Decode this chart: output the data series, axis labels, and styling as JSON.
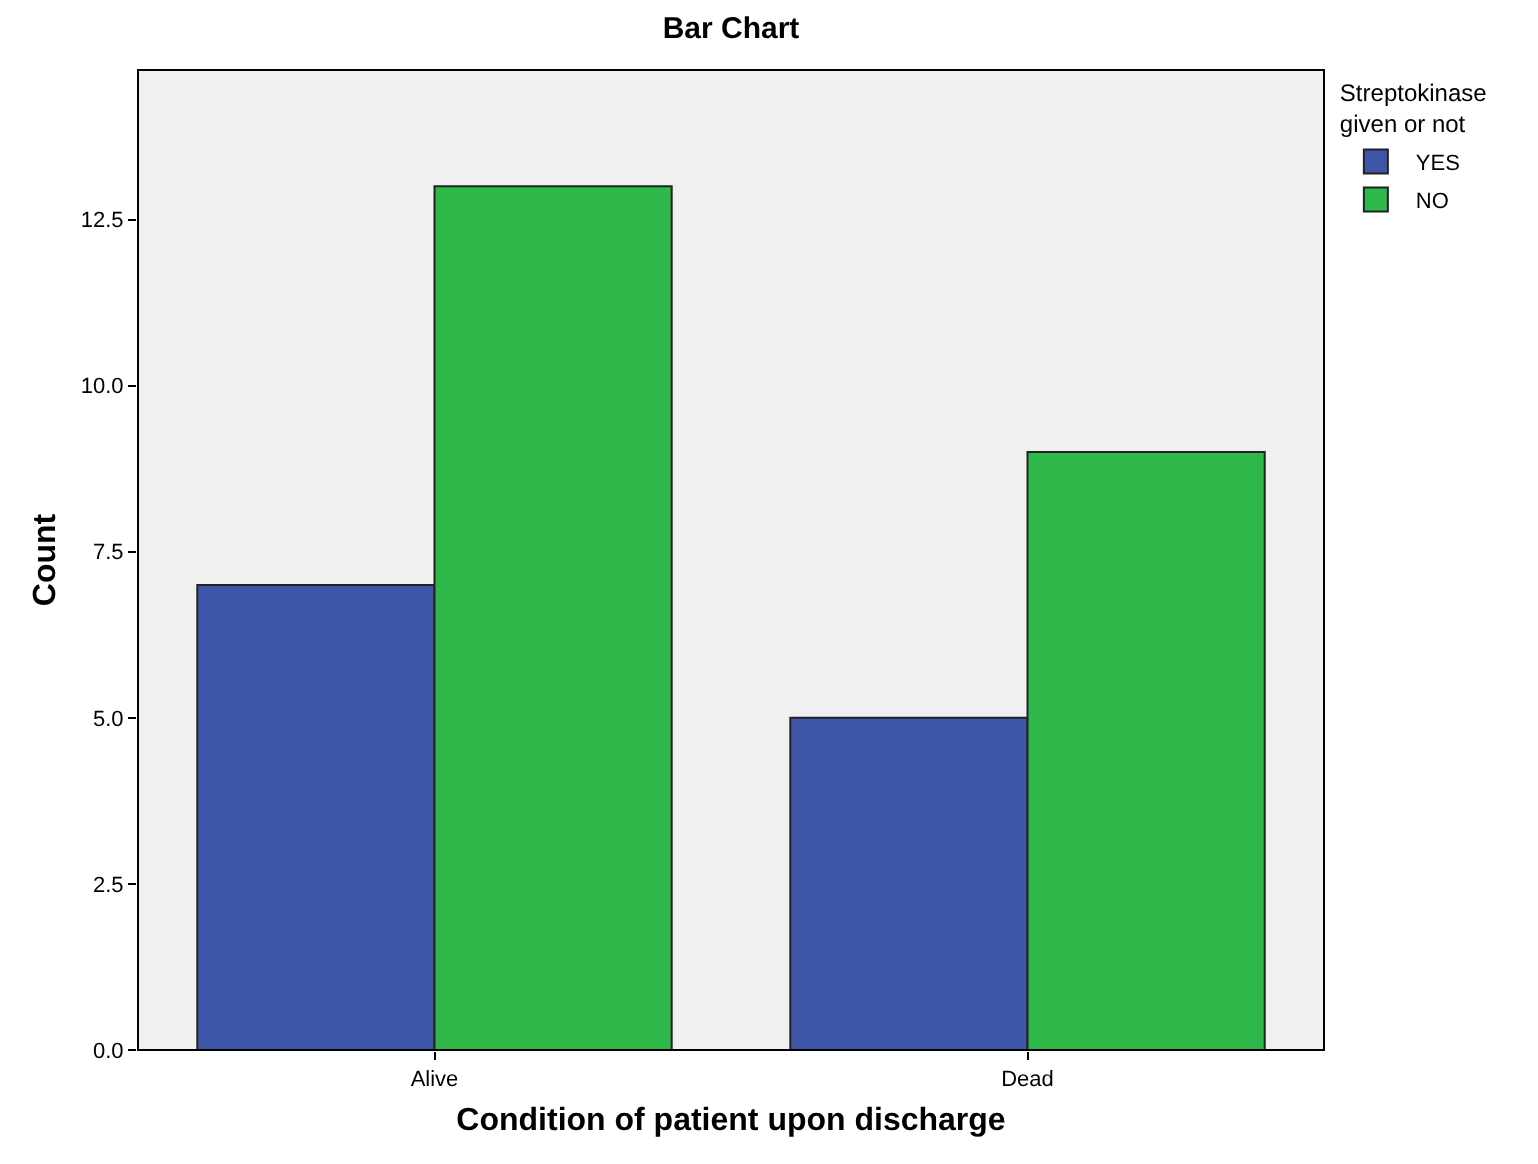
{
  "chart_data": {
    "type": "bar",
    "title": "Bar Chart",
    "xlabel": "Condition of patient upon discharge",
    "ylabel": "Count",
    "legend_title": "Streptokinase given or not",
    "legend": "top right",
    "grid": false,
    "categories": [
      "Alive",
      "Dead"
    ],
    "series": [
      {
        "name": "YES",
        "color": "#3e56a8",
        "values": [
          7,
          5
        ]
      },
      {
        "name": "NO",
        "color": "#2eb84a",
        "values": [
          13,
          9
        ]
      }
    ],
    "ylim": [
      0,
      14.75
    ],
    "yticks": [
      {
        "value": 0,
        "label": "0.0"
      },
      {
        "value": 2.5,
        "label": "2.5"
      },
      {
        "value": 5,
        "label": "5.0"
      },
      {
        "value": 7.5,
        "label": "7.5"
      },
      {
        "value": 10,
        "label": "10.0"
      },
      {
        "value": 12.5,
        "label": "12.5"
      }
    ]
  }
}
